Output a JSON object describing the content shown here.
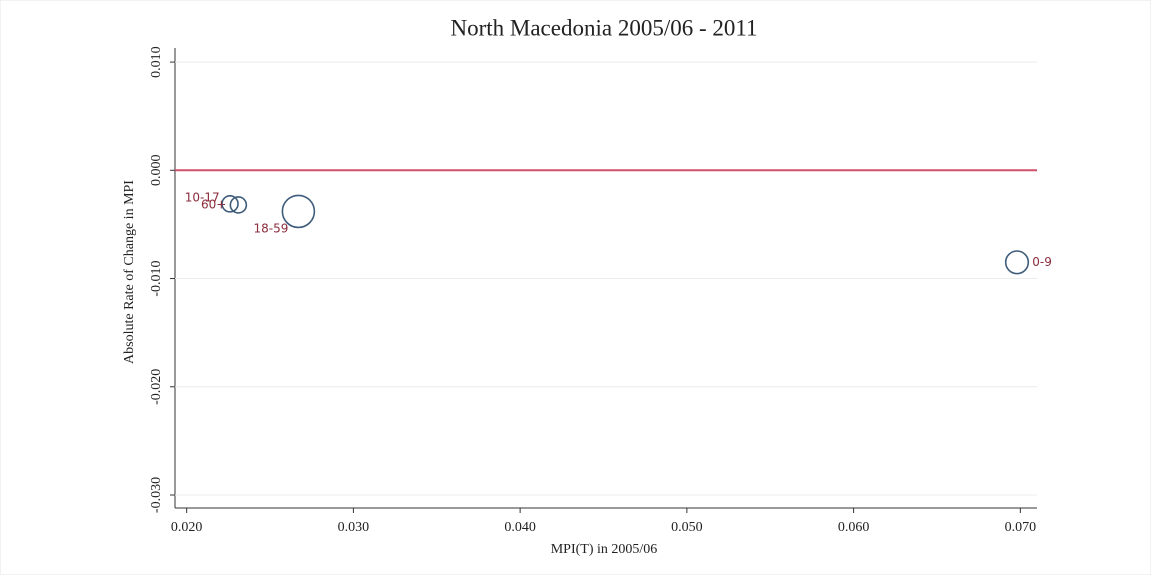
{
  "chart_data": {
    "type": "scatter",
    "title": "North Macedonia 2005/06 - 2011",
    "x_label": "MPI(T) in 2005/06",
    "y_label": "Absolute Rate of Change in MPI",
    "labels": [
      "10-17",
      "60+",
      "18-59",
      "0-9"
    ],
    "x": [
      0.0226,
      0.0231,
      0.0267,
      0.0698
    ],
    "y": [
      -0.0031,
      -0.0032,
      -0.0038,
      -0.0085
    ],
    "sizes": [
      1,
      1,
      4,
      2
    ],
    "label_positions": [
      10,
      9,
      7,
      3
    ],
    "color": "#3e5c7a",
    "label_color": "#8c2d3c",
    "xlim": [
      0.0193,
      0.071
    ],
    "ylim": [
      -0.0312,
      0.0113
    ],
    "xticks": [
      {
        "value": 0.02,
        "label": "0.020"
      },
      {
        "value": 0.03,
        "label": "0.030"
      },
      {
        "value": 0.04,
        "label": "0.040"
      },
      {
        "value": 0.05,
        "label": "0.050"
      },
      {
        "value": 0.06,
        "label": "0.060"
      },
      {
        "value": 0.07,
        "label": "0.070"
      }
    ],
    "yticks": [
      {
        "value": -0.03,
        "label": "-0.030"
      },
      {
        "value": -0.02,
        "label": "-0.020"
      },
      {
        "value": -0.01,
        "label": "-0.010"
      },
      {
        "value": 0,
        "label": "0.000"
      },
      {
        "value": 0.01,
        "label": "0.010"
      }
    ],
    "grid": true,
    "yline": 0,
    "yline_color": "#d0506a"
  }
}
